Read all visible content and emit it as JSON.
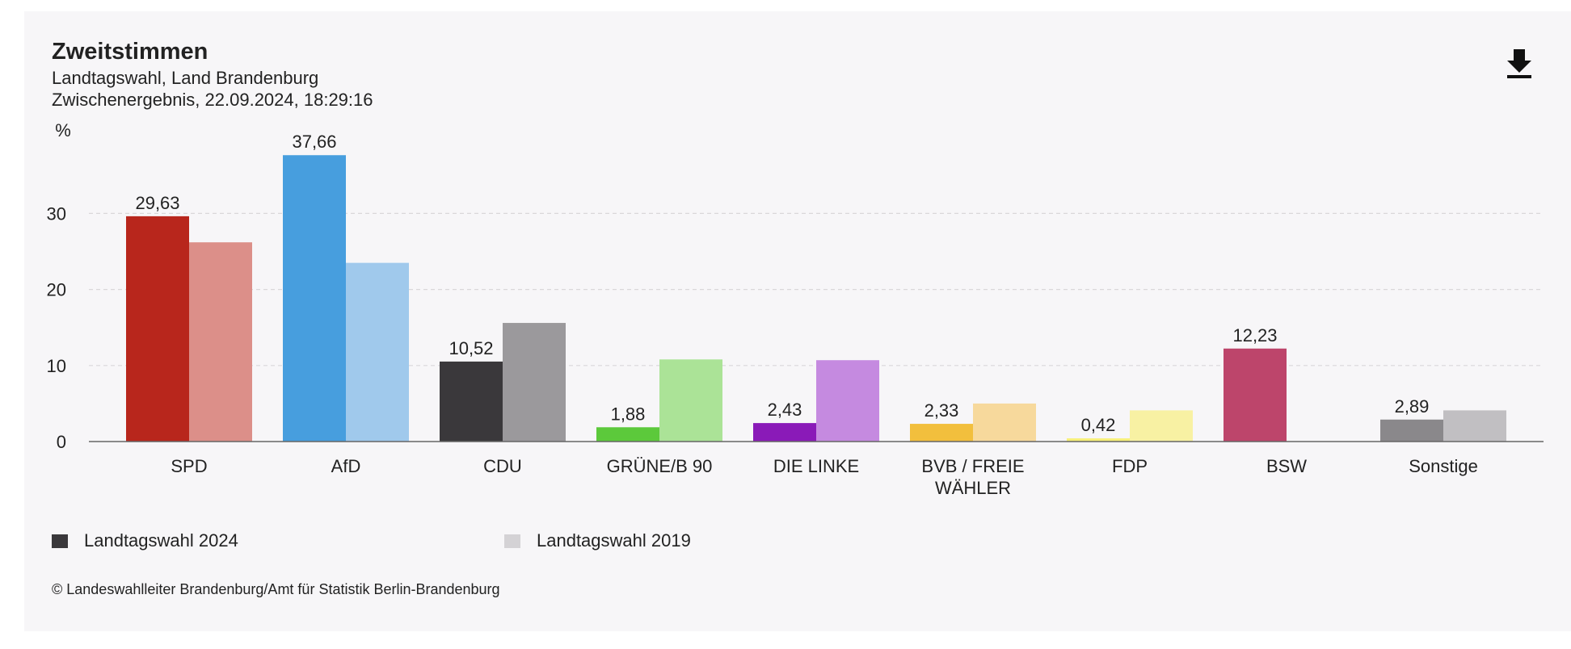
{
  "header": {
    "title": "Zweitstimmen",
    "subtitle": "Landtagswahl, Land Brandenburg",
    "status": "Zwischenergebnis, 22.09.2024, 18:29:16"
  },
  "download_icon": "download-icon",
  "legend": {
    "items": [
      {
        "label": "Landtagswahl 2024",
        "color": "#3a383b"
      },
      {
        "label": "Landtagswahl 2019",
        "color": "#d4d2d5"
      }
    ]
  },
  "credit": "© Landeswahlleiter Brandenburg/Amt für Statistik Berlin-Brandenburg",
  "chart_data": {
    "type": "bar",
    "ylabel": "%",
    "ylim": [
      0,
      40
    ],
    "yticks": [
      "0",
      "10",
      "20",
      "30"
    ],
    "grid": true,
    "legend_position": "bottom",
    "categories": [
      [
        "SPD"
      ],
      [
        "AfD"
      ],
      [
        "CDU"
      ],
      [
        "GRÜNE/B 90"
      ],
      [
        "DIE LINKE"
      ],
      [
        "BVB / FREIE",
        "WÄHLER"
      ],
      [
        "FDP"
      ],
      [
        "BSW"
      ],
      [
        "Sonstige"
      ]
    ],
    "series": [
      {
        "name": "Landtagswahl 2024",
        "values": [
          29.63,
          37.66,
          10.52,
          1.88,
          2.43,
          2.33,
          0.42,
          12.23,
          2.89
        ],
        "labels": [
          "29,63",
          "37,66",
          "10,52",
          "1,88",
          "2,43",
          "2,33",
          "0,42",
          "12,23",
          "2,89"
        ],
        "colors": [
          "#b8261c",
          "#479ede",
          "#3a383b",
          "#5cc93b",
          "#8a1ab8",
          "#f2bf3d",
          "#f7f07a",
          "#bd456b",
          "#8a888b"
        ]
      },
      {
        "name": "Landtagswahl 2019",
        "values": [
          26.2,
          23.5,
          15.6,
          10.8,
          10.7,
          5.0,
          4.1,
          0,
          4.1
        ],
        "colors": [
          "#dc8f89",
          "#a0c9ec",
          "#9b999c",
          "#abe397",
          "#c58ae0",
          "#f7d99c",
          "#f8f1a3",
          "#d9a1b3",
          "#c1bfc2"
        ]
      }
    ]
  }
}
